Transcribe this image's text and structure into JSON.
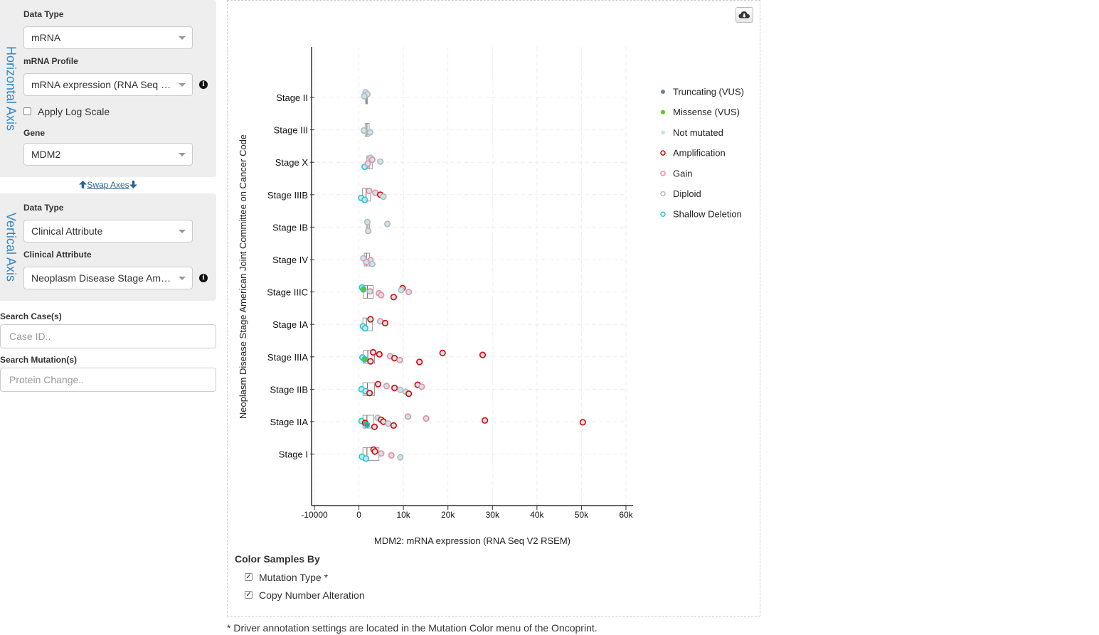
{
  "horizontal": {
    "axis_title": "Horizontal Axis",
    "data_type_label": "Data Type",
    "data_type_value": "mRNA",
    "profile_label": "mRNA Profile",
    "profile_value": "mRNA expression (RNA Seq V2 RSEM)",
    "log_scale_label": "Apply Log Scale",
    "gene_label": "Gene",
    "gene_value": "MDM2"
  },
  "swap_axes": "Swap Axes",
  "vertical": {
    "axis_title": "Vertical Axis",
    "data_type_label": "Data Type",
    "data_type_value": "Clinical Attribute",
    "attribute_label": "Clinical Attribute",
    "attribute_value": "Neoplasm Disease Stage American Joint Committee on Cancer Code"
  },
  "search_cases": {
    "label": "Search Case(s)",
    "placeholder": "Case ID.."
  },
  "search_mutations": {
    "label": "Search Mutation(s)",
    "placeholder": "Protein Change.."
  },
  "icons": {
    "download": "cloud-download-icon",
    "info": "info-circle-icon",
    "swap_up": "arrow-up-icon",
    "swap_down": "arrow-down-icon"
  },
  "colors": {
    "truncating": "#708090",
    "missense": "#5dc81e",
    "not_mutated": "#c6e6f0",
    "amplification": "#e00000",
    "gain": "#f08aa0",
    "diploid": "#b8b8b8",
    "shallow_deletion": "#27c7cf",
    "axis_title": "#3786c2"
  },
  "chart_data": {
    "type": "scatter",
    "subtype": "box-plot-with-jitter",
    "orientation": "horizontal",
    "xlabel": "MDM2: mRNA expression (RNA Seq V2 RSEM)",
    "ylabel": "Neoplasm Disease Stage American Joint Committee on Cancer Code",
    "xlim": [
      -10000,
      60000
    ],
    "xticks": [
      -10000,
      0,
      10000,
      20000,
      30000,
      40000,
      50000,
      60000
    ],
    "xtick_labels": [
      "-10000",
      "0",
      "10k",
      "20k",
      "30k",
      "40k",
      "50k",
      "60k"
    ],
    "grid": true,
    "legend_position": "right",
    "categories": [
      "Stage II",
      "Stage III",
      "Stage X",
      "Stage IIIB",
      "Stage IB",
      "Stage IV",
      "Stage IIIC",
      "Stage IA",
      "Stage IIIA",
      "Stage IIB",
      "Stage IIA",
      "Stage I"
    ],
    "legend": [
      {
        "name": "Truncating (VUS)",
        "key": "truncating",
        "style": "filled"
      },
      {
        "name": "Missense (VUS)",
        "key": "missense",
        "style": "filled"
      },
      {
        "name": "Not mutated",
        "key": "not_mutated",
        "style": "filled"
      },
      {
        "name": "Amplification",
        "key": "amplification",
        "style": "ring"
      },
      {
        "name": "Gain",
        "key": "gain",
        "style": "ring"
      },
      {
        "name": "Diploid",
        "key": "diploid",
        "style": "ring"
      },
      {
        "name": "Shallow Deletion",
        "key": "shallow_deletion",
        "style": "ring"
      }
    ],
    "boxes": [
      {
        "category": "Stage II",
        "q1": 1500,
        "median": 1700,
        "q3": 1900
      },
      {
        "category": "Stage III",
        "q1": 1400,
        "median": 1800,
        "q3": 2300
      },
      {
        "category": "Stage X",
        "q1": 1800,
        "median": 2300,
        "q3": 3000
      },
      {
        "category": "Stage IIIB",
        "q1": 800,
        "median": 1600,
        "q3": 2600
      },
      {
        "category": "Stage IB",
        "q1": 1700,
        "median": 2000,
        "q3": 2400
      },
      {
        "category": "Stage IV",
        "q1": 1200,
        "median": 1700,
        "q3": 2400
      },
      {
        "category": "Stage IIIC",
        "q1": 1000,
        "median": 1900,
        "q3": 3200
      },
      {
        "category": "Stage IA",
        "q1": 900,
        "median": 1700,
        "q3": 3000
      },
      {
        "category": "Stage IIIA",
        "q1": 1000,
        "median": 2000,
        "q3": 3500
      },
      {
        "category": "Stage IIB",
        "q1": 900,
        "median": 1900,
        "q3": 3500
      },
      {
        "category": "Stage IIA",
        "q1": 900,
        "median": 1800,
        "q3": 3300
      },
      {
        "category": "Stage I",
        "q1": 900,
        "median": 1800,
        "q3": 4500
      }
    ],
    "points": [
      {
        "category": "Stage II",
        "x": 1500,
        "fill": "not_mutated",
        "cna": "diploid"
      },
      {
        "category": "Stage II",
        "x": 1900,
        "fill": "not_mutated",
        "cna": "diploid"
      },
      {
        "category": "Stage II",
        "x": 1200,
        "fill": "not_mutated",
        "cna": "diploid"
      },
      {
        "category": "Stage III",
        "x": 1100,
        "fill": "not_mutated",
        "cna": "diploid"
      },
      {
        "category": "Stage III",
        "x": 2500,
        "fill": "not_mutated",
        "cna": "diploid"
      },
      {
        "category": "Stage X",
        "x": 1300,
        "fill": "not_mutated",
        "cna": "shallow_deletion"
      },
      {
        "category": "Stage X",
        "x": 2600,
        "fill": "not_mutated",
        "cna": "diploid"
      },
      {
        "category": "Stage X",
        "x": 3000,
        "fill": "not_mutated",
        "cna": "gain"
      },
      {
        "category": "Stage X",
        "x": 4800,
        "fill": "not_mutated",
        "cna": "diploid"
      },
      {
        "category": "Stage X",
        "x": 2000,
        "fill": "not_mutated",
        "cna": "gain"
      },
      {
        "category": "Stage IIIB",
        "x": 500,
        "fill": "not_mutated",
        "cna": "shallow_deletion"
      },
      {
        "category": "Stage IIIB",
        "x": 1300,
        "fill": "not_mutated",
        "cna": "shallow_deletion"
      },
      {
        "category": "Stage IIIB",
        "x": 2300,
        "fill": "not_mutated",
        "cna": "gain"
      },
      {
        "category": "Stage IIIB",
        "x": 3700,
        "fill": "not_mutated",
        "cna": "gain"
      },
      {
        "category": "Stage IIIB",
        "x": 4800,
        "fill": "not_mutated",
        "cna": "amplification"
      },
      {
        "category": "Stage IIIB",
        "x": 5500,
        "fill": "not_mutated",
        "cna": "diploid"
      },
      {
        "category": "Stage IB",
        "x": 2100,
        "fill": "not_mutated",
        "cna": "diploid"
      },
      {
        "category": "Stage IB",
        "x": 1900,
        "fill": "not_mutated",
        "cna": "diploid"
      },
      {
        "category": "Stage IB",
        "x": 6400,
        "fill": "not_mutated",
        "cna": "diploid"
      },
      {
        "category": "Stage IV",
        "x": 1000,
        "fill": "not_mutated",
        "cna": "diploid"
      },
      {
        "category": "Stage IV",
        "x": 2600,
        "fill": "not_mutated",
        "cna": "gain"
      },
      {
        "category": "Stage IV",
        "x": 1700,
        "fill": "not_mutated",
        "cna": "gain"
      },
      {
        "category": "Stage IV",
        "x": 3000,
        "fill": "not_mutated",
        "cna": "diploid"
      },
      {
        "category": "Stage IIIC",
        "x": 700,
        "fill": "not_mutated",
        "cna": "shallow_deletion"
      },
      {
        "category": "Stage IIIC",
        "x": 1000,
        "fill": "missense",
        "cna": "shallow_deletion"
      },
      {
        "category": "Stage IIIC",
        "x": 2500,
        "fill": "not_mutated",
        "cna": "gain"
      },
      {
        "category": "Stage IIIC",
        "x": 4500,
        "fill": "not_mutated",
        "cna": "gain"
      },
      {
        "category": "Stage IIIC",
        "x": 5000,
        "fill": "not_mutated",
        "cna": "gain"
      },
      {
        "category": "Stage IIIC",
        "x": 7800,
        "fill": "not_mutated",
        "cna": "amplification"
      },
      {
        "category": "Stage IIIC",
        "x": 9800,
        "fill": "not_mutated",
        "cna": "amplification"
      },
      {
        "category": "Stage IIIC",
        "x": 9500,
        "fill": "not_mutated",
        "cna": "diploid"
      },
      {
        "category": "Stage IIIC",
        "x": 11200,
        "fill": "not_mutated",
        "cna": "gain"
      },
      {
        "category": "Stage IA",
        "x": 900,
        "fill": "not_mutated",
        "cna": "shallow_deletion"
      },
      {
        "category": "Stage IA",
        "x": 1400,
        "fill": "not_mutated",
        "cna": "shallow_deletion"
      },
      {
        "category": "Stage IA",
        "x": 2600,
        "fill": "not_mutated",
        "cna": "amplification"
      },
      {
        "category": "Stage IA",
        "x": 4800,
        "fill": "not_mutated",
        "cna": "gain"
      },
      {
        "category": "Stage IA",
        "x": 5900,
        "fill": "not_mutated",
        "cna": "amplification"
      },
      {
        "category": "Stage IIIA",
        "x": 800,
        "fill": "not_mutated",
        "cna": "shallow_deletion"
      },
      {
        "category": "Stage IIIA",
        "x": 1300,
        "fill": "missense",
        "cna": "shallow_deletion"
      },
      {
        "category": "Stage IIIA",
        "x": 2600,
        "fill": "not_mutated",
        "cna": "amplification"
      },
      {
        "category": "Stage IIIA",
        "x": 3200,
        "fill": "not_mutated",
        "cna": "amplification"
      },
      {
        "category": "Stage IIIA",
        "x": 4600,
        "fill": "not_mutated",
        "cna": "amplification"
      },
      {
        "category": "Stage IIIA",
        "x": 7000,
        "fill": "not_mutated",
        "cna": "gain"
      },
      {
        "category": "Stage IIIA",
        "x": 8000,
        "fill": "not_mutated",
        "cna": "amplification"
      },
      {
        "category": "Stage IIIA",
        "x": 9200,
        "fill": "not_mutated",
        "cna": "gain"
      },
      {
        "category": "Stage IIIA",
        "x": 13600,
        "fill": "not_mutated",
        "cna": "amplification"
      },
      {
        "category": "Stage IIIA",
        "x": 18800,
        "fill": "not_mutated",
        "cna": "amplification"
      },
      {
        "category": "Stage IIIA",
        "x": 27800,
        "fill": "not_mutated",
        "cna": "amplification"
      },
      {
        "category": "Stage IIB",
        "x": 600,
        "fill": "not_mutated",
        "cna": "shallow_deletion"
      },
      {
        "category": "Stage IIB",
        "x": 1500,
        "fill": "not_mutated",
        "cna": "shallow_deletion"
      },
      {
        "category": "Stage IIB",
        "x": 2400,
        "fill": "not_mutated",
        "cna": "amplification"
      },
      {
        "category": "Stage IIB",
        "x": 4300,
        "fill": "not_mutated",
        "cna": "amplification"
      },
      {
        "category": "Stage IIB",
        "x": 6200,
        "fill": "not_mutated",
        "cna": "gain"
      },
      {
        "category": "Stage IIB",
        "x": 8000,
        "fill": "not_mutated",
        "cna": "amplification"
      },
      {
        "category": "Stage IIB",
        "x": 9300,
        "fill": "not_mutated",
        "cna": "diploid"
      },
      {
        "category": "Stage IIB",
        "x": 10500,
        "fill": "not_mutated",
        "cna": "diploid"
      },
      {
        "category": "Stage IIB",
        "x": 11200,
        "fill": "not_mutated",
        "cna": "amplification"
      },
      {
        "category": "Stage IIB",
        "x": 13200,
        "fill": "not_mutated",
        "cna": "amplification"
      },
      {
        "category": "Stage IIB",
        "x": 14100,
        "fill": "not_mutated",
        "cna": "gain"
      },
      {
        "category": "Stage IIA",
        "x": 600,
        "fill": "not_mutated",
        "cna": "shallow_deletion"
      },
      {
        "category": "Stage IIA",
        "x": 1400,
        "fill": "missense",
        "cna": "amplification"
      },
      {
        "category": "Stage IIA",
        "x": 1800,
        "fill": "truncating",
        "cna": "shallow_deletion"
      },
      {
        "category": "Stage IIA",
        "x": 3500,
        "fill": "not_mutated",
        "cna": "amplification"
      },
      {
        "category": "Stage IIA",
        "x": 4200,
        "fill": "not_mutated",
        "cna": "diploid"
      },
      {
        "category": "Stage IIA",
        "x": 5000,
        "fill": "not_mutated",
        "cna": "amplification"
      },
      {
        "category": "Stage IIA",
        "x": 5500,
        "fill": "not_mutated",
        "cna": "amplification"
      },
      {
        "category": "Stage IIA",
        "x": 6600,
        "fill": "not_mutated",
        "cna": "diploid"
      },
      {
        "category": "Stage IIA",
        "x": 7800,
        "fill": "not_mutated",
        "cna": "amplification"
      },
      {
        "category": "Stage IIA",
        "x": 11000,
        "fill": "not_mutated",
        "cna": "gain"
      },
      {
        "category": "Stage IIA",
        "x": 15100,
        "fill": "not_mutated",
        "cna": "gain"
      },
      {
        "category": "Stage IIA",
        "x": 28300,
        "fill": "not_mutated",
        "cna": "amplification"
      },
      {
        "category": "Stage IIA",
        "x": 50300,
        "fill": "not_mutated",
        "cna": "amplification"
      },
      {
        "category": "Stage I",
        "x": 700,
        "fill": "not_mutated",
        "cna": "shallow_deletion"
      },
      {
        "category": "Stage I",
        "x": 1600,
        "fill": "not_mutated",
        "cna": "shallow_deletion"
      },
      {
        "category": "Stage I",
        "x": 3300,
        "fill": "not_mutated",
        "cna": "amplification"
      },
      {
        "category": "Stage I",
        "x": 3600,
        "fill": "not_mutated",
        "cna": "amplification"
      },
      {
        "category": "Stage I",
        "x": 5000,
        "fill": "not_mutated",
        "cna": "gain"
      },
      {
        "category": "Stage I",
        "x": 7300,
        "fill": "not_mutated",
        "cna": "gain"
      },
      {
        "category": "Stage I",
        "x": 9300,
        "fill": "not_mutated",
        "cna": "diploid"
      }
    ]
  },
  "color_by": {
    "title": "Color Samples By",
    "options": [
      {
        "label": "Mutation Type *",
        "checked": true
      },
      {
        "label": "Copy Number Alteration",
        "checked": true
      }
    ]
  },
  "footnote": "* Driver annotation settings are located in the Mutation Color menu of the Oncoprint."
}
